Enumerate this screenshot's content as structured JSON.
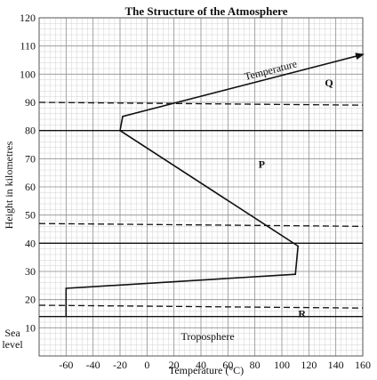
{
  "chart_data": {
    "type": "line",
    "title": "The Structure of the Atmosphere",
    "xlabel": "Temperature (°C)",
    "ylabel": "Height in kilometres",
    "xlim": [
      -80,
      160
    ],
    "ylim": [
      0,
      120
    ],
    "x_ticks": [
      "-60",
      "-40",
      "-20",
      "0",
      "20",
      "40",
      "60",
      "80",
      "100",
      "120",
      "140",
      "160"
    ],
    "x_tick_values": [
      -60,
      -40,
      -20,
      0,
      20,
      40,
      60,
      80,
      100,
      120,
      140,
      160
    ],
    "y_ticks": [
      "10",
      "20",
      "30",
      "40",
      "50",
      "60",
      "70",
      "80",
      "90",
      "100",
      "110",
      "120"
    ],
    "y_tick_values": [
      10,
      20,
      30,
      40,
      50,
      60,
      70,
      80,
      90,
      100,
      110,
      120
    ],
    "sea_level_label": [
      "Sea",
      "level"
    ],
    "grid": true,
    "series": [
      {
        "name": "Temperature",
        "points": [
          {
            "x": -60,
            "y": 14
          },
          {
            "x": -60,
            "y": 24
          },
          {
            "x": 110,
            "y": 29
          },
          {
            "x": 112,
            "y": 39
          },
          {
            "x": -20,
            "y": 80
          },
          {
            "x": -18,
            "y": 85
          },
          {
            "x": 160,
            "y": 107
          }
        ]
      }
    ],
    "solid_boundaries": [
      14,
      40,
      80
    ],
    "dashed_boundaries": [
      {
        "y_left": 18,
        "y_right": 17
      },
      {
        "y_left": 47,
        "y_right": 46
      },
      {
        "y_left": 90,
        "y_right": 89
      }
    ],
    "annotations": [
      {
        "id": "Q",
        "text": "Q",
        "x": 135,
        "y": 97
      },
      {
        "id": "P",
        "text": "P",
        "x": 85,
        "y": 68
      },
      {
        "id": "R",
        "text": "R",
        "x": 115,
        "y": 15
      },
      {
        "id": "troposphere",
        "text": "Troposphere",
        "x": 45,
        "y": 7
      }
    ]
  }
}
